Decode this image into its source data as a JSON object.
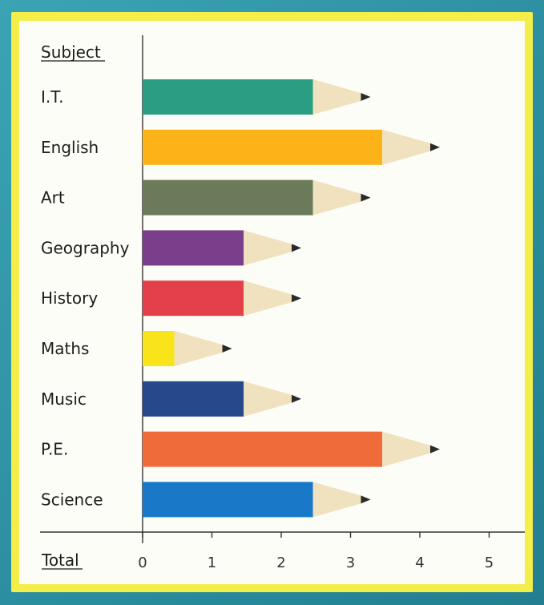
{
  "chart_data": {
    "type": "bar",
    "orientation": "horizontal",
    "header_label": "Subject",
    "xlabel": "Total",
    "categories": [
      "I.T.",
      "English",
      "Art",
      "Geography",
      "History",
      "Maths",
      "Music",
      "P.E.",
      "Science"
    ],
    "values": [
      3,
      4,
      3,
      2,
      2,
      1,
      2,
      4,
      3
    ],
    "xlim": [
      0,
      5
    ],
    "xticks": [
      "0",
      "1",
      "2",
      "3",
      "4",
      "5"
    ],
    "colors": [
      "#2a9d82",
      "#fbb317",
      "#6b7a58",
      "#7a3e8a",
      "#e4404a",
      "#f9e31a",
      "#25498a",
      "#ef6b3a",
      "#1a78c8"
    ],
    "mark_style": "pencil",
    "grid": false
  }
}
